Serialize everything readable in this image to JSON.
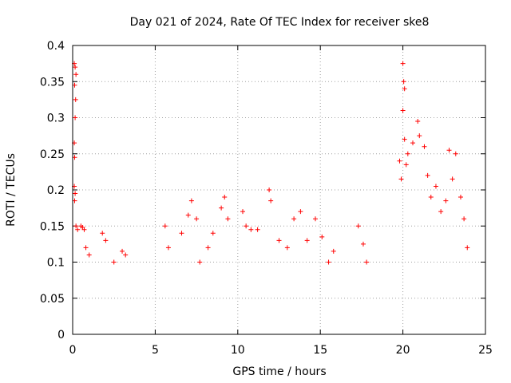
{
  "chart_data": {
    "type": "scatter",
    "title": "Day 021 of 2024, Rate Of TEC Index for receiver ske8",
    "xlabel": "GPS time / hours",
    "ylabel": "ROTI / TECUs",
    "xlim": [
      0,
      25
    ],
    "ylim": [
      0,
      0.4
    ],
    "x_ticks": [
      0,
      5,
      10,
      15,
      20,
      25
    ],
    "y_ticks": [
      0,
      0.05,
      0.1,
      0.15,
      0.2,
      0.25,
      0.3,
      0.35,
      0.4
    ],
    "x_tick_labels": [
      "0",
      "5",
      "10",
      "15",
      "20",
      "25"
    ],
    "y_tick_labels": [
      "0",
      "0.05",
      "0.1",
      "0.15",
      "0.2",
      "0.25",
      "0.3",
      "0.35",
      "0.4"
    ],
    "grid": true,
    "marker": "+",
    "series_color": "#ff0000",
    "series": [
      {
        "name": "ROTI",
        "points": [
          [
            0.1,
            0.375
          ],
          [
            0.15,
            0.37
          ],
          [
            0.2,
            0.36
          ],
          [
            0.12,
            0.345
          ],
          [
            0.18,
            0.325
          ],
          [
            0.15,
            0.3
          ],
          [
            0.1,
            0.265
          ],
          [
            0.12,
            0.245
          ],
          [
            0.1,
            0.205
          ],
          [
            0.15,
            0.195
          ],
          [
            0.12,
            0.185
          ],
          [
            0.2,
            0.15
          ],
          [
            0.3,
            0.145
          ],
          [
            0.5,
            0.15
          ],
          [
            0.6,
            0.148
          ],
          [
            0.7,
            0.145
          ],
          [
            0.8,
            0.12
          ],
          [
            1.0,
            0.11
          ],
          [
            1.8,
            0.14
          ],
          [
            2.0,
            0.13
          ],
          [
            2.5,
            0.1
          ],
          [
            3.0,
            0.115
          ],
          [
            3.2,
            0.11
          ],
          [
            5.6,
            0.15
          ],
          [
            5.8,
            0.12
          ],
          [
            6.6,
            0.14
          ],
          [
            7.0,
            0.165
          ],
          [
            7.2,
            0.185
          ],
          [
            7.5,
            0.16
          ],
          [
            7.7,
            0.1
          ],
          [
            8.2,
            0.12
          ],
          [
            8.5,
            0.14
          ],
          [
            9.0,
            0.175
          ],
          [
            9.2,
            0.19
          ],
          [
            9.4,
            0.16
          ],
          [
            10.3,
            0.17
          ],
          [
            10.5,
            0.15
          ],
          [
            10.8,
            0.145
          ],
          [
            11.2,
            0.145
          ],
          [
            11.9,
            0.2
          ],
          [
            12.0,
            0.185
          ],
          [
            12.5,
            0.13
          ],
          [
            13.0,
            0.12
          ],
          [
            13.4,
            0.16
          ],
          [
            13.8,
            0.17
          ],
          [
            14.2,
            0.13
          ],
          [
            14.7,
            0.16
          ],
          [
            15.1,
            0.135
          ],
          [
            15.5,
            0.1
          ],
          [
            15.8,
            0.115
          ],
          [
            17.3,
            0.15
          ],
          [
            17.6,
            0.125
          ],
          [
            17.8,
            0.1
          ],
          [
            19.8,
            0.24
          ],
          [
            19.9,
            0.215
          ],
          [
            20.0,
            0.375
          ],
          [
            20.05,
            0.35
          ],
          [
            20.1,
            0.34
          ],
          [
            20.0,
            0.31
          ],
          [
            20.1,
            0.27
          ],
          [
            20.2,
            0.235
          ],
          [
            20.3,
            0.25
          ],
          [
            20.6,
            0.265
          ],
          [
            20.9,
            0.295
          ],
          [
            21.0,
            0.275
          ],
          [
            21.3,
            0.26
          ],
          [
            21.5,
            0.22
          ],
          [
            21.7,
            0.19
          ],
          [
            22.0,
            0.205
          ],
          [
            22.3,
            0.17
          ],
          [
            22.6,
            0.185
          ],
          [
            22.8,
            0.255
          ],
          [
            23.0,
            0.215
          ],
          [
            23.2,
            0.25
          ],
          [
            23.5,
            0.19
          ],
          [
            23.7,
            0.16
          ],
          [
            23.9,
            0.12
          ]
        ]
      }
    ]
  }
}
